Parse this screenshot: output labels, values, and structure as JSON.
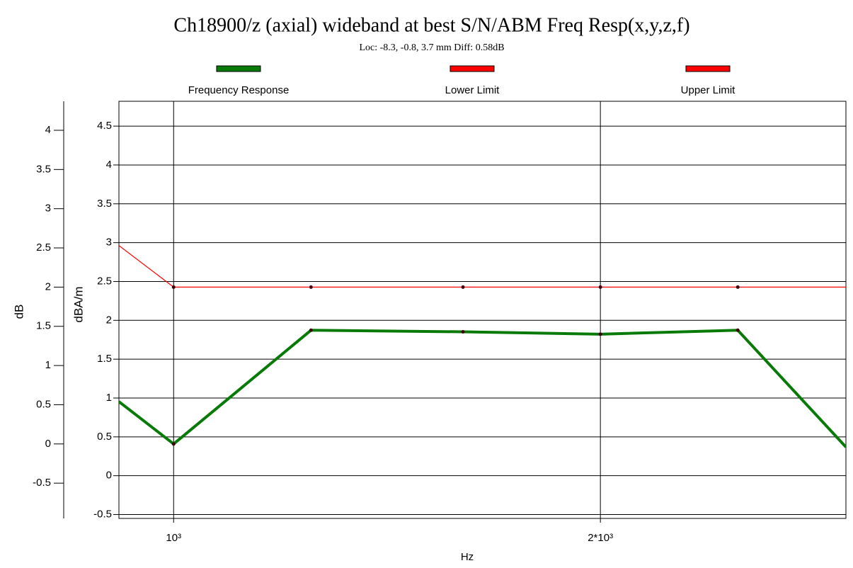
{
  "chart_data": {
    "type": "line",
    "title": "Ch18900/z (axial) wideband at best S/N/ABM Freq Resp(x,y,z,f)",
    "subtitle": "Loc: -8.3, -0.8, 3.7 mm Diff: 0.58dB",
    "x_label": "Hz",
    "y_label": "dBA/m",
    "y2_label": "dB",
    "x": [
      915,
      1000,
      1250,
      1600,
      2000,
      2500,
      2980
    ],
    "series": [
      {
        "name": "Frequency Response",
        "color": "#087a08",
        "axis": "y2",
        "values": [
          0.54,
          0.0,
          1.45,
          1.43,
          1.4,
          1.45,
          -0.04
        ]
      },
      {
        "name": "Lower Limit",
        "color": "#ff0000",
        "axis": "y2",
        "values": [
          null,
          null,
          null,
          null,
          null,
          null,
          null
        ]
      },
      {
        "name": "Upper Limit",
        "color": "#ff0000",
        "axis": "y2",
        "values": [
          2.53,
          2.0,
          2.0,
          2.0,
          2.0,
          2.0,
          2.0
        ]
      }
    ],
    "xlog": true,
    "xlim": [
      915,
      2980
    ],
    "xticks": [
      {
        "value": 1000,
        "label": "10³"
      },
      {
        "value": 2000,
        "label": "2*10³"
      }
    ],
    "ylim": [
      -0.55,
      4.82
    ],
    "yticks": [
      -0.5,
      0.0,
      0.5,
      1.0,
      1.5,
      2.0,
      2.5,
      3.0,
      3.5,
      4.0,
      4.5
    ],
    "y2lim": [
      -0.95,
      4.37
    ],
    "y2ticks": [
      -0.5,
      0.0,
      0.5,
      1.0,
      1.5,
      2.0,
      2.5,
      3.0,
      3.5,
      4.0
    ],
    "grid": true
  }
}
